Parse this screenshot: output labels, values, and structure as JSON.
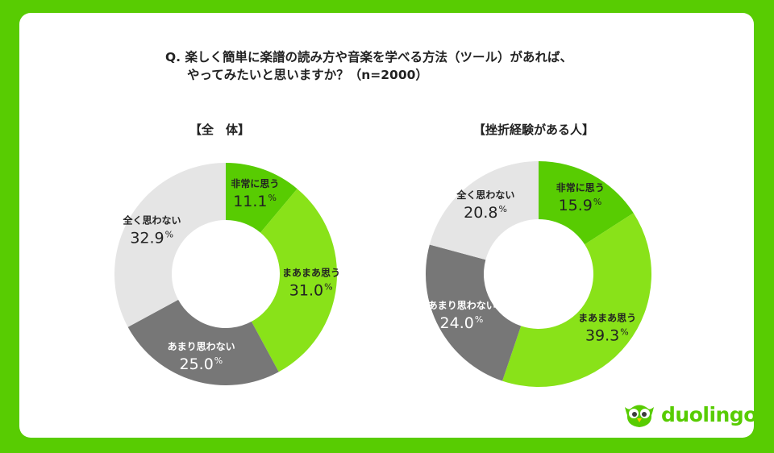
{
  "question": {
    "line1": "Q. 楽しく簡単に楽譜の読み方や音楽を学べる方法（ツール）があれば、",
    "line2": "やってみたいと思いますか？（n=2000）"
  },
  "brand": {
    "name": "duolingo",
    "icon": "owl-icon",
    "color": "#58cc02"
  },
  "colors": {
    "background": "#58cc02",
    "very_much": "#58cc02",
    "somewhat": "#89e219",
    "not_much": "#777777",
    "not_at_all": "#e5e5e5"
  },
  "chart_data": [
    {
      "type": "pie",
      "donut": true,
      "title": "【全　体】",
      "categories": [
        "非常に思う",
        "まあまあ思う",
        "あまり思わない",
        "全く思わない"
      ],
      "values": [
        11.1,
        31.0,
        25.0,
        32.9
      ],
      "value_labels": [
        "11.1",
        "31.0",
        "25.0",
        "32.9"
      ],
      "unit": "%",
      "colors": [
        "#58cc02",
        "#89e219",
        "#777777",
        "#e5e5e5"
      ]
    },
    {
      "type": "pie",
      "donut": true,
      "title": "【挫折経験がある人】",
      "categories": [
        "非常に思う",
        "まあまあ思う",
        "あまり思わない",
        "全く思わない"
      ],
      "values": [
        15.9,
        39.3,
        24.0,
        20.8
      ],
      "value_labels": [
        "15.9",
        "39.3",
        "24.0",
        "20.8"
      ],
      "unit": "%",
      "colors": [
        "#58cc02",
        "#89e219",
        "#777777",
        "#e5e5e5"
      ]
    }
  ]
}
